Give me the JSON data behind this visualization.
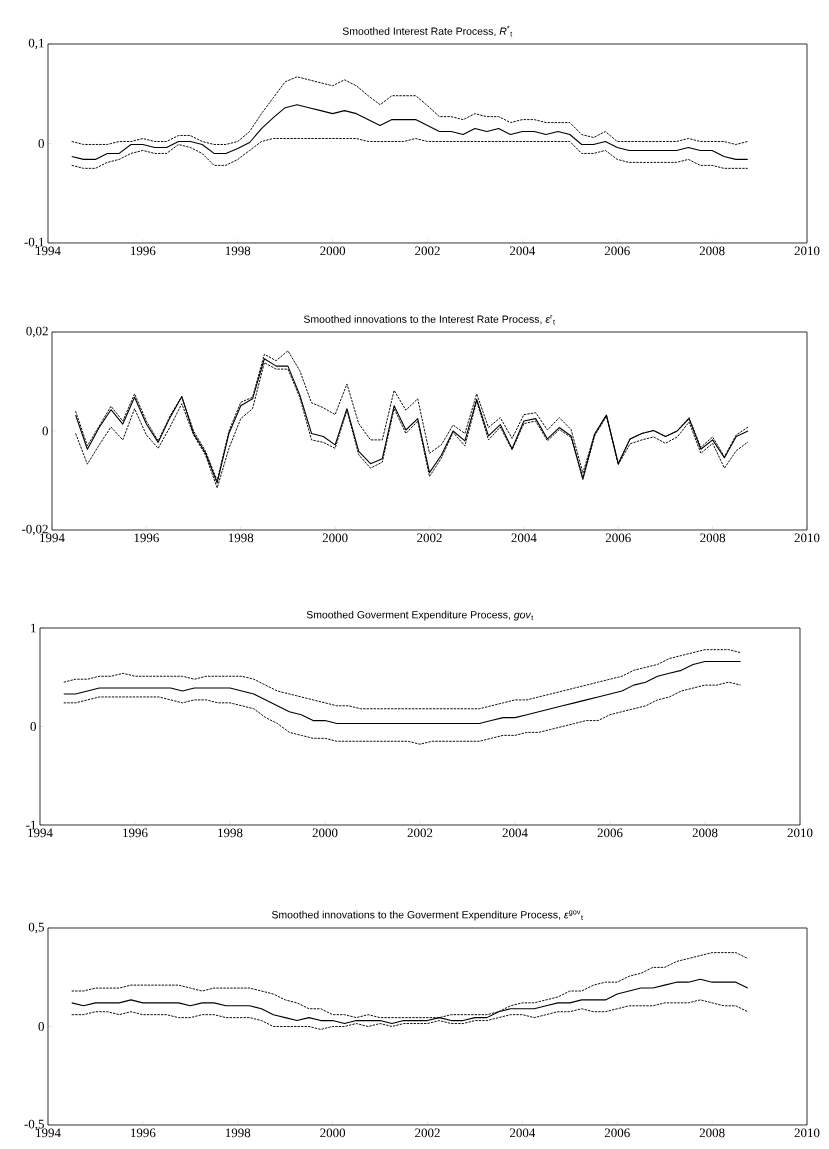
{
  "chart_data": [
    {
      "type": "line",
      "title": "Smoothed Interest Rate Process, *R*$^{*}$$_{t}$",
      "x": [
        1994.5,
        1994.75,
        1995,
        1995.25,
        1995.5,
        1995.75,
        1996,
        1996.25,
        1996.5,
        1996.75,
        1997,
        1997.25,
        1997.5,
        1997.75,
        1998,
        1998.25,
        1998.5,
        1998.75,
        1999,
        1999.25,
        1999.5,
        1999.75,
        2000,
        2000.25,
        2000.5,
        2000.75,
        2001,
        2001.25,
        2001.5,
        2001.75,
        2002,
        2002.25,
        2002.5,
        2002.75,
        2003,
        2003.25,
        2003.5,
        2003.75,
        2004,
        2004.25,
        2004.5,
        2004.75,
        2005,
        2005.25,
        2005.5,
        2005.75,
        2006,
        2006.25,
        2006.5,
        2006.75,
        2007,
        2007.25,
        2007.5,
        2007.75,
        2008,
        2008.25,
        2008.5,
        2008.75
      ],
      "xlim": [
        1994,
        2010
      ],
      "xticks": [
        1994,
        1996,
        1998,
        2000,
        2002,
        2004,
        2006,
        2008,
        2010
      ],
      "ylim": [
        -0.1,
        0.1
      ],
      "yticks": [
        {
          "value": -0.1,
          "label": "-0,1"
        },
        0,
        {
          "value": 0.1,
          "label": "0,1"
        }
      ],
      "series": [
        {
          "color": "#000000",
          "line_style": "solid",
          "values": [
            -0.013,
            -0.016,
            -0.016,
            -0.01,
            -0.01,
            -0.001,
            -0.001,
            -0.004,
            -0.004,
            0.002,
            0.002,
            -0.001,
            -0.01,
            -0.01,
            -0.005,
            0.001,
            0.015,
            0.026,
            0.036,
            0.039,
            0.036,
            0.033,
            0.03,
            0.033,
            0.03,
            0.024,
            0.018,
            0.024,
            0.024,
            0.024,
            0.018,
            0.012,
            0.012,
            0.009,
            0.015,
            0.012,
            0.015,
            0.009,
            0.012,
            0.012,
            0.009,
            0.012,
            0.009,
            -0.001,
            -0.001,
            0.002,
            -0.004,
            -0.007,
            -0.007,
            -0.007,
            -0.007,
            -0.007,
            -0.004,
            -0.007,
            -0.007,
            -0.013,
            -0.016,
            -0.016
          ]
        },
        {
          "color": "#000000",
          "line_style": "dashed",
          "values": [
            0.002,
            -0.001,
            -0.001,
            -0.001,
            0.002,
            0.002,
            0.005,
            0.002,
            0.002,
            0.008,
            0.008,
            0.002,
            -0.001,
            -0.001,
            0.002,
            0.012,
            0.03,
            0.046,
            0.062,
            0.067,
            0.064,
            0.061,
            0.058,
            0.064,
            0.058,
            0.048,
            0.039,
            0.048,
            0.048,
            0.048,
            0.038,
            0.027,
            0.027,
            0.024,
            0.03,
            0.027,
            0.027,
            0.021,
            0.024,
            0.024,
            0.021,
            0.021,
            0.021,
            0.009,
            0.006,
            0.012,
            0.002,
            0.002,
            0.002,
            0.002,
            0.002,
            0.002,
            0.005,
            0.002,
            0.002,
            0.002,
            -0.001,
            0.002
          ]
        },
        {
          "color": "#000000",
          "line_style": "dashed",
          "values": [
            -0.022,
            -0.025,
            -0.025,
            -0.019,
            -0.016,
            -0.01,
            -0.007,
            -0.01,
            -0.01,
            -0.001,
            -0.004,
            -0.01,
            -0.022,
            -0.022,
            -0.016,
            -0.007,
            0.002,
            0.005,
            0.005,
            0.005,
            0.005,
            0.005,
            0.005,
            0.005,
            0.005,
            0.002,
            0.002,
            0.002,
            0.002,
            0.005,
            0.002,
            0.002,
            0.002,
            0.002,
            0.002,
            0.002,
            0.002,
            0.002,
            0.002,
            0.002,
            0.002,
            0.002,
            0.002,
            -0.01,
            -0.01,
            -0.007,
            -0.016,
            -0.019,
            -0.019,
            -0.019,
            -0.019,
            -0.019,
            -0.016,
            -0.022,
            -0.022,
            -0.025,
            -0.025,
            -0.025
          ]
        }
      ]
    },
    {
      "type": "line",
      "title": "Smoothed innovations to the Interest Rate Process, *ε*$^{r}$$_{t}$",
      "x": [
        1994.5,
        1994.75,
        1995,
        1995.25,
        1995.5,
        1995.75,
        1996,
        1996.25,
        1996.5,
        1996.75,
        1997,
        1997.25,
        1997.5,
        1997.75,
        1998,
        1998.25,
        1998.5,
        1998.75,
        1999,
        1999.25,
        1999.5,
        1999.75,
        2000,
        2000.25,
        2000.5,
        2000.75,
        2001,
        2001.25,
        2001.5,
        2001.75,
        2002,
        2002.25,
        2002.5,
        2002.75,
        2003,
        2003.25,
        2003.5,
        2003.75,
        2004,
        2004.25,
        2004.5,
        2004.75,
        2005,
        2005.25,
        2005.5,
        2005.75,
        2006,
        2006.25,
        2006.5,
        2006.75,
        2007,
        2007.25,
        2007.5,
        2007.75,
        2008,
        2008.25,
        2008.5,
        2008.75
      ],
      "xlim": [
        1994,
        2010
      ],
      "xticks": [
        1994,
        1996,
        1998,
        2000,
        2002,
        2004,
        2006,
        2008,
        2010
      ],
      "ylim": [
        -0.02,
        0.02
      ],
      "yticks": [
        {
          "value": -0.02,
          "label": "-0,02"
        },
        0,
        {
          "value": 0.02,
          "label": "0,02"
        }
      ],
      "series": [
        {
          "color": "#000000",
          "line_style": "solid",
          "values": [
            0.0032,
            -0.0037,
            0.0007,
            0.0043,
            0.0014,
            0.0068,
            0.0014,
            -0.0023,
            0.0027,
            0.0069,
            -0.0005,
            -0.0044,
            -0.0105,
            -0.0005,
            0.0051,
            0.0065,
            0.0146,
            0.0131,
            0.0131,
            0.0073,
            -0.0005,
            -0.0011,
            -0.0028,
            0.0045,
            -0.0041,
            -0.0066,
            -0.0056,
            0.0051,
            0.0002,
            0.0025,
            -0.0084,
            -0.0049,
            0,
            -0.002,
            0.0064,
            -0.001,
            0.0013,
            -0.0036,
            0.002,
            0.0025,
            -0.0016,
            0.0007,
            -0.001,
            -0.0096,
            -0.0006,
            0.0032,
            -0.0066,
            -0.0016,
            -0.0005,
            0.0001,
            -0.0011,
            0,
            0.0025,
            -0.0037,
            -0.0018,
            -0.0054,
            -0.0011,
            0
          ]
        },
        {
          "color": "#000000",
          "line_style": "dashed",
          "values": [
            0.004,
            -0.003,
            0.001,
            0.005,
            0.002,
            0.0075,
            0.002,
            -0.002,
            0.003,
            0.007,
            0,
            -0.004,
            -0.01,
            0,
            0.0058,
            0.0068,
            0.0155,
            0.0142,
            0.0162,
            0.0122,
            0.0057,
            0.0047,
            0.0033,
            0.0095,
            0.0015,
            -0.0018,
            -0.0018,
            0.0082,
            0.0042,
            0.0065,
            -0.0045,
            -0.0028,
            0.0012,
            -0.0005,
            0.0075,
            0.0007,
            0.0027,
            -0.0015,
            0.0033,
            0.0037,
            0.0002,
            0.0027,
            0.0003,
            -0.0085,
            -0.0006,
            0.0032,
            -0.0066,
            -0.0016,
            -0.0005,
            0.0001,
            -0.0011,
            0,
            0.0027,
            -0.0033,
            -0.0012,
            -0.0052,
            -0.0008,
            0.0008
          ]
        },
        {
          "color": "#000000",
          "line_style": "dashed",
          "values": [
            -0.0005,
            -0.0067,
            -0.0028,
            0.0008,
            -0.0018,
            0.0045,
            -0.0008,
            -0.0035,
            0.0008,
            0.0055,
            -0.0008,
            -0.0048,
            -0.0115,
            -0.0035,
            0.0025,
            0.0045,
            0.0138,
            0.0125,
            0.0125,
            0.0068,
            -0.0018,
            -0.0023,
            -0.0035,
            0.0042,
            -0.0048,
            -0.0075,
            -0.0063,
            0.0045,
            -0.0005,
            0.002,
            -0.0092,
            -0.0055,
            -0.0003,
            -0.003,
            0.006,
            -0.0018,
            0.0008,
            -0.0038,
            0.0015,
            0.002,
            -0.002,
            0.0003,
            -0.0013,
            -0.0098,
            -0.001,
            0.003,
            -0.0068,
            -0.0026,
            -0.0018,
            -0.0012,
            -0.0025,
            -0.0012,
            0.0018,
            -0.0045,
            -0.0025,
            -0.0075,
            -0.004,
            -0.0022
          ]
        }
      ]
    },
    {
      "type": "line",
      "title": "Smoothed Goverment Expenditure Process, *gov*$_{t}$",
      "x": [
        1994.5,
        1994.75,
        1995,
        1995.25,
        1995.5,
        1995.75,
        1996,
        1996.25,
        1996.5,
        1996.75,
        1997,
        1997.25,
        1997.5,
        1997.75,
        1998,
        1998.25,
        1998.5,
        1998.75,
        1999,
        1999.25,
        1999.5,
        1999.75,
        2000,
        2000.25,
        2000.5,
        2000.75,
        2001,
        2001.25,
        2001.5,
        2001.75,
        2002,
        2002.25,
        2002.5,
        2002.75,
        2003,
        2003.25,
        2003.5,
        2003.75,
        2004,
        2004.25,
        2004.5,
        2004.75,
        2005,
        2005.25,
        2005.5,
        2005.75,
        2006,
        2006.25,
        2006.5,
        2006.75,
        2007,
        2007.25,
        2007.5,
        2007.75,
        2008,
        2008.25,
        2008.5,
        2008.75
      ],
      "xlim": [
        1994,
        2010
      ],
      "xticks": [
        1994,
        1996,
        1998,
        2000,
        2002,
        2004,
        2006,
        2008,
        2010
      ],
      "ylim": [
        -1,
        1
      ],
      "yticks": [
        -1,
        0,
        1
      ],
      "series": [
        {
          "color": "#000000",
          "line_style": "solid",
          "values": [
            0.33,
            0.33,
            0.36,
            0.39,
            0.39,
            0.39,
            0.39,
            0.39,
            0.39,
            0.39,
            0.36,
            0.39,
            0.39,
            0.39,
            0.39,
            0.36,
            0.33,
            0.27,
            0.21,
            0.15,
            0.12,
            0.06,
            0.06,
            0.03,
            0.03,
            0.03,
            0.03,
            0.03,
            0.03,
            0.03,
            0.03,
            0.03,
            0.03,
            0.03,
            0.03,
            0.03,
            0.06,
            0.09,
            0.09,
            0.12,
            0.15,
            0.18,
            0.21,
            0.24,
            0.27,
            0.3,
            0.33,
            0.36,
            0.42,
            0.45,
            0.51,
            0.54,
            0.57,
            0.63,
            0.66,
            0.66,
            0.66,
            0.66
          ]
        },
        {
          "color": "#000000",
          "line_style": "dashed",
          "values": [
            0.45,
            0.48,
            0.48,
            0.51,
            0.51,
            0.54,
            0.51,
            0.51,
            0.51,
            0.51,
            0.51,
            0.48,
            0.51,
            0.51,
            0.51,
            0.51,
            0.48,
            0.42,
            0.36,
            0.33,
            0.3,
            0.27,
            0.24,
            0.21,
            0.21,
            0.18,
            0.18,
            0.18,
            0.18,
            0.18,
            0.18,
            0.18,
            0.18,
            0.18,
            0.18,
            0.18,
            0.21,
            0.24,
            0.27,
            0.27,
            0.3,
            0.33,
            0.36,
            0.39,
            0.42,
            0.45,
            0.48,
            0.51,
            0.57,
            0.6,
            0.63,
            0.69,
            0.72,
            0.75,
            0.78,
            0.78,
            0.78,
            0.75
          ]
        },
        {
          "color": "#000000",
          "line_style": "dashed",
          "values": [
            0.24,
            0.24,
            0.27,
            0.3,
            0.3,
            0.3,
            0.3,
            0.3,
            0.3,
            0.27,
            0.24,
            0.27,
            0.27,
            0.24,
            0.24,
            0.21,
            0.18,
            0.09,
            0.03,
            -0.06,
            -0.09,
            -0.12,
            -0.12,
            -0.15,
            -0.15,
            -0.15,
            -0.15,
            -0.15,
            -0.15,
            -0.15,
            -0.18,
            -0.15,
            -0.15,
            -0.15,
            -0.15,
            -0.15,
            -0.12,
            -0.09,
            -0.09,
            -0.06,
            -0.06,
            -0.03,
            0,
            0.03,
            0.06,
            0.06,
            0.12,
            0.15,
            0.18,
            0.21,
            0.27,
            0.3,
            0.36,
            0.39,
            0.42,
            0.42,
            0.45,
            0.42
          ]
        }
      ]
    },
    {
      "type": "line",
      "title": "Smoothed innovations to the Goverment Expenditure Process, *ε*$^{gov}$$_{t}$",
      "x": [
        1994.5,
        1994.75,
        1995,
        1995.25,
        1995.5,
        1995.75,
        1996,
        1996.25,
        1996.5,
        1996.75,
        1997,
        1997.25,
        1997.5,
        1997.75,
        1998,
        1998.25,
        1998.5,
        1998.75,
        1999,
        1999.25,
        1999.5,
        1999.75,
        2000,
        2000.25,
        2000.5,
        2000.75,
        2001,
        2001.25,
        2001.5,
        2001.75,
        2002,
        2002.25,
        2002.5,
        2002.75,
        2003,
        2003.25,
        2003.5,
        2003.75,
        2004,
        2004.25,
        2004.5,
        2004.75,
        2005,
        2005.25,
        2005.5,
        2005.75,
        2006,
        2006.25,
        2006.5,
        2006.75,
        2007,
        2007.25,
        2007.5,
        2007.75,
        2008,
        2008.25,
        2008.5,
        2008.75
      ],
      "xlim": [
        1994,
        2010
      ],
      "xticks": [
        1994,
        1996,
        1998,
        2000,
        2002,
        2004,
        2006,
        2008,
        2010
      ],
      "ylim": [
        -0.5,
        0.5
      ],
      "yticks": [
        {
          "value": -0.5,
          "label": "-0,5"
        },
        0,
        {
          "value": 0.5,
          "label": "0,5"
        }
      ],
      "series": [
        {
          "color": "#000000",
          "line_style": "solid",
          "values": [
            0.12,
            0.105,
            0.12,
            0.12,
            0.12,
            0.135,
            0.12,
            0.12,
            0.12,
            0.12,
            0.105,
            0.12,
            0.12,
            0.105,
            0.105,
            0.105,
            0.09,
            0.06,
            0.045,
            0.03,
            0.045,
            0.03,
            0.03,
            0.015,
            0.03,
            0.03,
            0.03,
            0.015,
            0.03,
            0.03,
            0.03,
            0.045,
            0.03,
            0.03,
            0.045,
            0.045,
            0.075,
            0.09,
            0.09,
            0.09,
            0.105,
            0.12,
            0.12,
            0.135,
            0.135,
            0.135,
            0.165,
            0.18,
            0.195,
            0.195,
            0.21,
            0.225,
            0.225,
            0.24,
            0.225,
            0.225,
            0.225,
            0.195
          ]
        },
        {
          "color": "#000000",
          "line_style": "dashed",
          "values": [
            0.18,
            0.18,
            0.195,
            0.195,
            0.195,
            0.21,
            0.21,
            0.21,
            0.21,
            0.21,
            0.195,
            0.18,
            0.195,
            0.195,
            0.195,
            0.195,
            0.18,
            0.165,
            0.135,
            0.12,
            0.09,
            0.09,
            0.06,
            0.06,
            0.045,
            0.06,
            0.045,
            0.045,
            0.045,
            0.045,
            0.045,
            0.045,
            0.06,
            0.06,
            0.06,
            0.06,
            0.075,
            0.105,
            0.12,
            0.12,
            0.135,
            0.15,
            0.18,
            0.18,
            0.21,
            0.225,
            0.225,
            0.255,
            0.27,
            0.3,
            0.3,
            0.33,
            0.345,
            0.36,
            0.375,
            0.375,
            0.375,
            0.345
          ]
        },
        {
          "color": "#000000",
          "line_style": "dashed",
          "values": [
            0.06,
            0.06,
            0.075,
            0.075,
            0.06,
            0.075,
            0.06,
            0.06,
            0.06,
            0.045,
            0.045,
            0.06,
            0.06,
            0.045,
            0.045,
            0.045,
            0.03,
            0,
            0,
            0,
            0,
            -0.015,
            0,
            0,
            0.015,
            0,
            0.015,
            0,
            0.015,
            0.015,
            0.015,
            0.03,
            0.015,
            0.015,
            0.03,
            0.03,
            0.045,
            0.06,
            0.06,
            0.045,
            0.06,
            0.075,
            0.075,
            0.09,
            0.075,
            0.075,
            0.09,
            0.105,
            0.105,
            0.105,
            0.12,
            0.12,
            0.12,
            0.135,
            0.12,
            0.105,
            0.105,
            0.075
          ]
        }
      ]
    }
  ]
}
